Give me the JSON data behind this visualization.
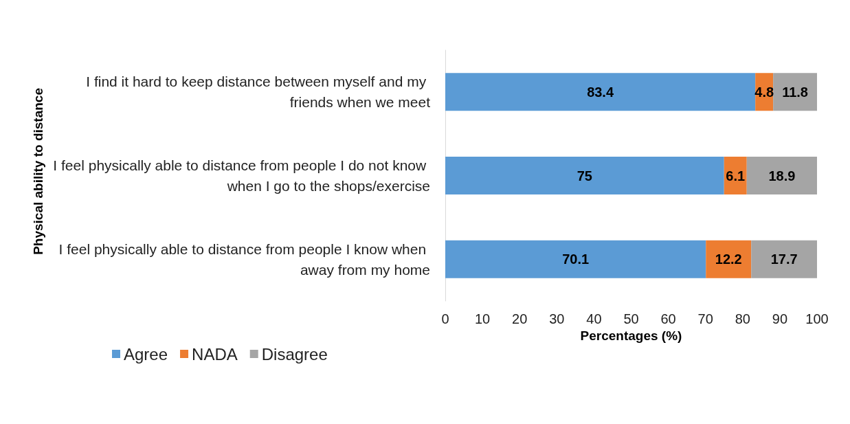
{
  "chart_data": {
    "type": "bar",
    "orientation": "horizontal",
    "stacked": true,
    "ylabel": "Physical ability to distance",
    "xlabel": "Percentages (%)",
    "categories": [
      "I find it hard to keep distance between myself and my friends when we meet",
      "I feel physically able to distance from people I do not know when I go to the shops/exercise",
      "I feel physically able to distance from people I know when away from my home"
    ],
    "series": [
      {
        "name": "Agree",
        "color": "#5b9bd5",
        "values": [
          83.4,
          75,
          70.1
        ]
      },
      {
        "name": "NADA",
        "color": "#ed7d31",
        "values": [
          4.8,
          6.1,
          12.2
        ]
      },
      {
        "name": "Disagree",
        "color": "#a5a5a5",
        "values": [
          11.8,
          18.9,
          17.7
        ]
      }
    ],
    "xlim": [
      0,
      100
    ],
    "xticks": [
      0,
      10,
      20,
      30,
      40,
      50,
      60,
      70,
      80,
      90,
      100
    ],
    "data_labels": true,
    "grid": false,
    "legend": "bottom left"
  }
}
